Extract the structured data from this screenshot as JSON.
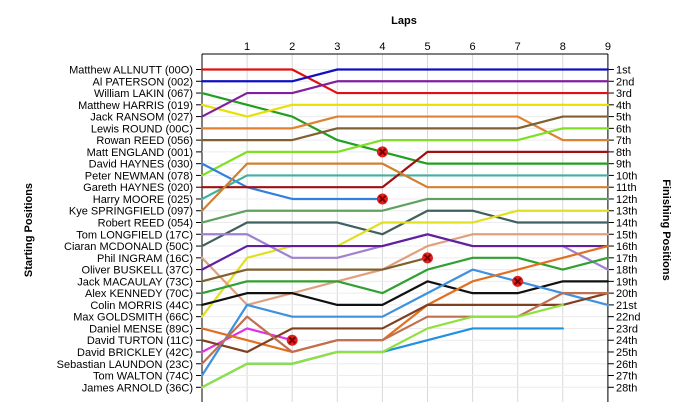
{
  "chart_data": {
    "type": "line",
    "title": "",
    "top_axis_label": "Laps",
    "left_axis_label": "Starting Positions",
    "right_axis_label": "Finishing Positions",
    "x": [
      0,
      1,
      2,
      3,
      4,
      5,
      6,
      7,
      8,
      9
    ],
    "x_tick_labels": [
      "1",
      "2",
      "3",
      "4",
      "5",
      "6",
      "7",
      "8",
      "9"
    ],
    "y_direction": "position 1 at top",
    "grid": true,
    "starting_labels": [
      "Matthew ALLNUTT (00O)",
      "Al PATERSON (002)",
      "William LAKIN (067)",
      "Matthew HARRIS (019)",
      "Jack RANSOM (027)",
      "Lewis ROUND (00C)",
      "Rowan REED (056)",
      "Matt ENGLAND (001)",
      "David HAYNES (030)",
      "Peter NEWMAN (078)",
      "Gareth HAYNES (020)",
      "Harry MOORE (025)",
      "Kye SPRINGFIELD (097)",
      "Robert REED (054)",
      "Tom LONGFIELD (17C)",
      "Ciaran MCDONALD (50C)",
      "Phil INGRAM (16C)",
      "Oliver BUSKELL (37C)",
      "Jack MACAULAY (73C)",
      "Alex KENNEDY (70C)",
      "Colin MORRIS (44C)",
      "Max GOLDSMITH (66C)",
      "Daniel MENSE (89C)",
      "David TURTON (11C)",
      "David BRICKLEY (42C)",
      "Sebastian LAUNDON (23C)",
      "Tom WALTON (74C)",
      "James ARNOLD (36C)"
    ],
    "finishing_labels": [
      "1st",
      "2nd",
      "3rd",
      "4th",
      "5th",
      "6th",
      "7th",
      "8th",
      "9th",
      "10th",
      "11th",
      "12th",
      "13th",
      "14th",
      "15th",
      "16th",
      "17th",
      "18th",
      "19th",
      "20th",
      "21st",
      "22nd",
      "23rd",
      "24th",
      "25th",
      "26th",
      "27th",
      "28th"
    ],
    "series": [
      {
        "color": "#e01010",
        "positions": [
          1,
          1,
          1,
          3,
          3,
          3,
          3,
          3,
          3,
          3
        ]
      },
      {
        "color": "#1010c0",
        "positions": [
          2,
          2,
          2,
          1,
          1,
          1,
          1,
          1,
          1,
          1
        ]
      },
      {
        "color": "#20a020",
        "positions": [
          3,
          4,
          5,
          7,
          8,
          9,
          9,
          9,
          9,
          9
        ]
      },
      {
        "color": "#e8e000",
        "positions": [
          4,
          5,
          4,
          4,
          4,
          4,
          4,
          4,
          4,
          4
        ]
      },
      {
        "color": "#8020a0",
        "positions": [
          5,
          3,
          3,
          2,
          2,
          2,
          2,
          2,
          2,
          2
        ]
      },
      {
        "color": "#e08030",
        "positions": [
          6,
          6,
          6,
          5,
          5,
          5,
          5,
          5,
          7,
          7
        ]
      },
      {
        "color": "#806030",
        "positions": [
          7,
          7,
          7,
          6,
          6,
          6,
          6,
          6,
          5,
          5
        ]
      },
      {
        "color": "#7ee020",
        "positions": [
          10,
          8,
          8,
          8,
          7,
          7,
          7,
          7,
          6,
          6
        ]
      },
      {
        "color": "#3080e0",
        "positions": [
          9,
          11,
          12,
          12,
          12
        ]
      },
      {
        "color": "#40b0a0",
        "positions": [
          12,
          10,
          10,
          10,
          10,
          10,
          10,
          10,
          10,
          10
        ]
      },
      {
        "color": "#a01010",
        "positions": [
          11,
          11,
          11,
          11,
          11,
          8,
          8,
          8,
          8,
          8
        ]
      },
      {
        "color": "#d08030",
        "positions": [
          13,
          9,
          9,
          9,
          9,
          11,
          11,
          11,
          11,
          11
        ]
      },
      {
        "color": "#406060",
        "positions": [
          16,
          14,
          14,
          14,
          15,
          13,
          13,
          14,
          14,
          14
        ]
      },
      {
        "color": "#e0e020",
        "positions": [
          22,
          17,
          16,
          16,
          14,
          14,
          14,
          13,
          13,
          13
        ]
      },
      {
        "color": "#a080d0",
        "positions": [
          15,
          15,
          17,
          17,
          16,
          15,
          16,
          16,
          16,
          18
        ]
      },
      {
        "color": "#e0a080",
        "positions": [
          17,
          21,
          20,
          19,
          18,
          16,
          15,
          15,
          15,
          15
        ]
      },
      {
        "color": "#6020a0",
        "positions": [
          18,
          16,
          16,
          16,
          16,
          15,
          16,
          16,
          16,
          16
        ]
      },
      {
        "color": "#806030",
        "positions": [
          19,
          18,
          18,
          18,
          18,
          17
        ]
      },
      {
        "color": "#30a030",
        "positions": [
          20,
          19,
          19,
          19,
          20,
          18,
          17,
          17,
          18,
          17
        ]
      },
      {
        "color": "#101010",
        "positions": [
          21,
          20,
          20,
          21,
          21,
          19,
          20,
          20,
          19,
          19
        ]
      },
      {
        "color": "#60a060",
        "positions": [
          14,
          13,
          13,
          13,
          13,
          12,
          12,
          12,
          12,
          12
        ]
      },
      {
        "color": "#4090e0",
        "positions": [
          27,
          21,
          22,
          22,
          22,
          20,
          18,
          19,
          20,
          21
        ]
      },
      {
        "color": "#e030e0",
        "positions": [
          25,
          23,
          24
        ]
      },
      {
        "color": "#e07020",
        "positions": [
          23,
          24,
          25,
          24,
          24,
          21,
          19,
          18,
          17,
          16
        ]
      },
      {
        "color": "#804020",
        "positions": [
          24,
          25,
          23,
          23,
          23,
          21,
          21,
          21,
          21,
          20
        ]
      },
      {
        "color": "#c07050",
        "positions": [
          26,
          22,
          25,
          24,
          24,
          22,
          22,
          22,
          20,
          20
        ]
      },
      {
        "color": "#2090e0",
        "positions": [
          28,
          26,
          26,
          25,
          25,
          24,
          23,
          23,
          23
        ]
      },
      {
        "color": "#90e040",
        "positions": [
          28,
          26,
          26,
          25,
          25,
          23,
          22,
          22,
          21
        ]
      }
    ],
    "retirement_markers": [
      {
        "lap": 4,
        "position": 8
      },
      {
        "lap": 4,
        "position": 12
      },
      {
        "lap": 5,
        "position": 17
      },
      {
        "lap": 7,
        "position": 19
      },
      {
        "lap": 2,
        "position": 24
      }
    ]
  }
}
